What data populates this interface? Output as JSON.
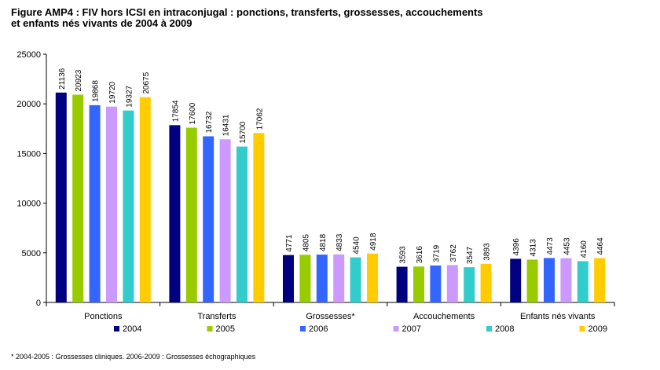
{
  "header": {
    "title_line1": "Figure AMP4 : FIV hors ICSI en intraconjugal : ponctions, transferts, grossesses, accouchements",
    "title_line2": "et enfants nés vivants de 2004 à 2009"
  },
  "footnote": "* 2004-2005 : Grossesses cliniques. 2006-2009 : Grossesses échographiques",
  "chart_data": {
    "type": "bar",
    "title": "Figure AMP4 : FIV hors ICSI en intraconjugal : ponctions, transferts, grossesses, accouchements et enfants nés vivants de 2004 à 2009",
    "categories": [
      "Ponctions",
      "Transferts",
      "Grossesses*",
      "Accouchements",
      "Enfants nés vivants"
    ],
    "series": [
      {
        "name": "2004",
        "color": "#000080",
        "values": [
          21136,
          17854,
          4771,
          3593,
          4396
        ]
      },
      {
        "name": "2005",
        "color": "#99CC00",
        "values": [
          20923,
          17600,
          4805,
          3616,
          4313
        ]
      },
      {
        "name": "2006",
        "color": "#3366FF",
        "values": [
          19868,
          16732,
          4818,
          3719,
          4473
        ]
      },
      {
        "name": "2007",
        "color": "#CC99FF",
        "values": [
          19720,
          16431,
          4833,
          3762,
          4453
        ]
      },
      {
        "name": "2008",
        "color": "#33CCCC",
        "values": [
          19327,
          15700,
          4540,
          3547,
          4160
        ]
      },
      {
        "name": "2009",
        "color": "#FFCC00",
        "values": [
          20675,
          17062,
          4918,
          3893,
          4464
        ]
      }
    ],
    "ylim": [
      0,
      25000
    ],
    "yticks": [
      "0",
      "5000",
      "10000",
      "15000",
      "20000",
      "25000"
    ],
    "grid": false,
    "legend": "bottom",
    "data_labels": true
  }
}
